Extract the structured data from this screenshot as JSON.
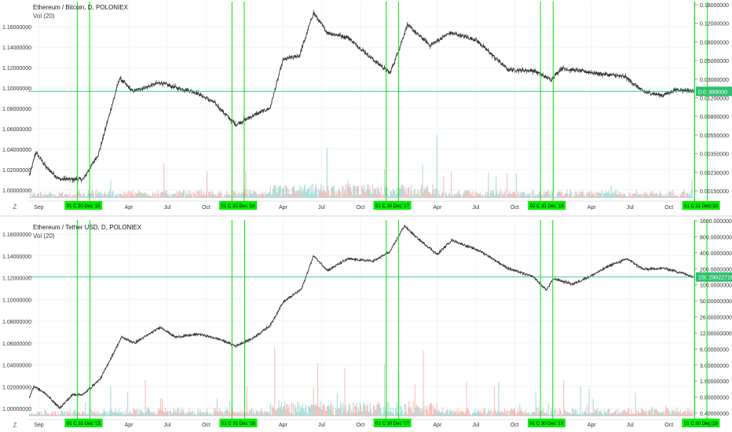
{
  "colors": {
    "up": "#26a69a",
    "down": "#ef5350",
    "bar": "#333333",
    "cycle_line": "#00e600",
    "cycle_tag_bg": "#00ee00",
    "last_price_tag_bg": "#2fbf71",
    "grid": "#f0f3fa",
    "axis_text": "#333333"
  },
  "panes": [
    {
      "title": "Ethereum / Bitcoin, D, POLONIEX",
      "volume_label": "Vol (20)",
      "left_axis_labels": [
        "1.16000000",
        "1.14000000",
        "1.12000000",
        "1.10000000",
        "1.08000000",
        "1.06000000",
        "1.04000000",
        "1.02000000",
        "1.00000000"
      ],
      "right_axis_labels": [
        "0.18000000",
        "0.12000000",
        "0.08000000",
        "0.05000000",
        "0.03000000",
        "0.01200000",
        "0.00800000",
        "0.00550000",
        "0.00350000",
        "0.00230000",
        "0.00150000"
      ],
      "last_price_label": "0.01999000",
      "x_axis_labels": [
        "Sep",
        "Apr",
        "Jul",
        "Oct",
        "Apr",
        "Jul",
        "Oct",
        "Apr",
        "Jul",
        "Oct",
        "Apr",
        "Jul",
        "Oct"
      ],
      "cycle_tags": [
        "01 C  30 Dec '15",
        "01 C  30 Dec '16",
        "01 C  30 Dec '17",
        "02 C  31 Dec '18",
        "01 C  31 Dec '19"
      ],
      "corner_left_icon": "Z",
      "corner_right_icon": "A",
      "chart_data": {
        "type": "candlestick",
        "series": [
          {
            "name": "Ethereum / Bitcoin",
            "scale": "log",
            "anchors": [
              {
                "t": "2015-08-10",
                "v": 0.0023
              },
              {
                "t": "2015-08-25",
                "v": 0.0042
              },
              {
                "t": "2015-09-20",
                "v": 0.0028
              },
              {
                "t": "2015-10-20",
                "v": 0.0021
              },
              {
                "t": "2015-12-15",
                "v": 0.0021
              },
              {
                "t": "2016-01-20",
                "v": 0.004
              },
              {
                "t": "2016-03-10",
                "v": 0.028
              },
              {
                "t": "2016-04-10",
                "v": 0.02
              },
              {
                "t": "2016-06-15",
                "v": 0.025
              },
              {
                "t": "2016-07-20",
                "v": 0.022
              },
              {
                "t": "2016-09-01",
                "v": 0.02
              },
              {
                "t": "2016-10-20",
                "v": 0.015
              },
              {
                "t": "2016-12-10",
                "v": 0.0085
              },
              {
                "t": "2017-01-25",
                "v": 0.011
              },
              {
                "t": "2017-03-01",
                "v": 0.013
              },
              {
                "t": "2017-04-01",
                "v": 0.045
              },
              {
                "t": "2017-05-10",
                "v": 0.05
              },
              {
                "t": "2017-06-12",
                "v": 0.15
              },
              {
                "t": "2017-07-15",
                "v": 0.09
              },
              {
                "t": "2017-09-01",
                "v": 0.08
              },
              {
                "t": "2017-11-01",
                "v": 0.045
              },
              {
                "t": "2017-12-10",
                "v": 0.032
              },
              {
                "t": "2018-01-01",
                "v": 0.06
              },
              {
                "t": "2018-01-20",
                "v": 0.11
              },
              {
                "t": "2018-03-15",
                "v": 0.065
              },
              {
                "t": "2018-05-01",
                "v": 0.09
              },
              {
                "t": "2018-07-01",
                "v": 0.075
              },
              {
                "t": "2018-09-15",
                "v": 0.035
              },
              {
                "t": "2018-11-15",
                "v": 0.034
              },
              {
                "t": "2018-12-25",
                "v": 0.027
              },
              {
                "t": "2019-01-20",
                "v": 0.036
              },
              {
                "t": "2019-03-01",
                "v": 0.034
              },
              {
                "t": "2019-05-01",
                "v": 0.031
              },
              {
                "t": "2019-06-20",
                "v": 0.029
              },
              {
                "t": "2019-08-01",
                "v": 0.02
              },
              {
                "t": "2019-09-15",
                "v": 0.018
              },
              {
                "t": "2019-10-20",
                "v": 0.021
              },
              {
                "t": "2019-11-28",
                "v": 0.01999
              }
            ]
          }
        ],
        "x_range": [
          "2015-08-07",
          "2019-11-30"
        ],
        "ylim": [
          0.0013,
          0.2
        ],
        "cycle_markers": [
          "2015-12-01",
          "2015-12-30",
          "2016-12-01",
          "2016-12-30",
          "2017-12-01",
          "2017-12-30",
          "2018-12-01",
          "2018-12-31",
          "2019-12-01",
          "2019-12-31"
        ],
        "last_price": 0.01999,
        "grid": true
      }
    },
    {
      "title": "Ethereum / Tether USD, D, POLONIEX",
      "volume_label": "Vol (20)",
      "left_axis_labels": [
        "1.16000000",
        "1.14000000",
        "1.12000000",
        "1.10000000",
        "1.08000000",
        "1.06000000",
        "1.04000000",
        "1.02000000",
        "1.00000000"
      ],
      "right_axis_labels": [
        "1600.00000000",
        "800.00000000",
        "400.00000000",
        "200.00000000",
        "100.00000000",
        "50.00000000",
        "26.00000000",
        "12.00000000",
        "6.00000000",
        "3.00000000",
        "1.60000000",
        "0.80000000",
        "0.40000000"
      ],
      "last_price_label": "150.29022716",
      "x_axis_labels": [
        "Sep",
        "Apr",
        "Jul",
        "Oct",
        "Apr",
        "Jul",
        "Oct",
        "Apr",
        "Jul",
        "Oct",
        "Apr",
        "Jul",
        "Oct"
      ],
      "cycle_tags": [
        "01 C  31 Dec '15",
        "01 C  31 Dec '16",
        "01 C  30 Dec '17",
        "01 C  30 Dec '18",
        "01 C  30 Dec '19"
      ],
      "corner_left_icon": "Z",
      "corner_right_icon": "A",
      "chart_data": {
        "type": "candlestick",
        "series": [
          {
            "name": "Ethereum / Tether USD",
            "scale": "log",
            "anchors": [
              {
                "t": "2015-08-10",
                "v": 0.8
              },
              {
                "t": "2015-08-20",
                "v": 1.3
              },
              {
                "t": "2015-09-20",
                "v": 0.9
              },
              {
                "t": "2015-10-20",
                "v": 0.5
              },
              {
                "t": "2015-11-20",
                "v": 0.9
              },
              {
                "t": "2015-12-15",
                "v": 0.9
              },
              {
                "t": "2016-01-25",
                "v": 1.8
              },
              {
                "t": "2016-03-15",
                "v": 11.0
              },
              {
                "t": "2016-04-15",
                "v": 8.5
              },
              {
                "t": "2016-06-15",
                "v": 17.0
              },
              {
                "t": "2016-07-20",
                "v": 11.0
              },
              {
                "t": "2016-09-15",
                "v": 12.5
              },
              {
                "t": "2016-11-01",
                "v": 10.0
              },
              {
                "t": "2016-12-10",
                "v": 7.5
              },
              {
                "t": "2017-01-20",
                "v": 10.5
              },
              {
                "t": "2017-03-01",
                "v": 18.0
              },
              {
                "t": "2017-04-01",
                "v": 50.0
              },
              {
                "t": "2017-05-15",
                "v": 90.0
              },
              {
                "t": "2017-06-12",
                "v": 380.0
              },
              {
                "t": "2017-07-15",
                "v": 200.0
              },
              {
                "t": "2017-09-01",
                "v": 330.0
              },
              {
                "t": "2017-11-01",
                "v": 300.0
              },
              {
                "t": "2017-12-10",
                "v": 450.0
              },
              {
                "t": "2018-01-13",
                "v": 1400.0
              },
              {
                "t": "2018-02-10",
                "v": 850.0
              },
              {
                "t": "2018-04-01",
                "v": 400.0
              },
              {
                "t": "2018-05-05",
                "v": 750.0
              },
              {
                "t": "2018-07-15",
                "v": 450.0
              },
              {
                "t": "2018-09-15",
                "v": 220.0
              },
              {
                "t": "2018-11-15",
                "v": 150.0
              },
              {
                "t": "2018-12-15",
                "v": 85.0
              },
              {
                "t": "2019-01-01",
                "v": 140.0
              },
              {
                "t": "2019-02-15",
                "v": 110.0
              },
              {
                "t": "2019-04-01",
                "v": 160.0
              },
              {
                "t": "2019-05-15",
                "v": 250.0
              },
              {
                "t": "2019-06-25",
                "v": 330.0
              },
              {
                "t": "2019-08-01",
                "v": 210.0
              },
              {
                "t": "2019-09-20",
                "v": 220.0
              },
              {
                "t": "2019-11-01",
                "v": 180.0
              },
              {
                "t": "2019-11-28",
                "v": 150.29
              }
            ]
          }
        ],
        "x_range": [
          "2015-08-07",
          "2019-11-30"
        ],
        "ylim": [
          0.35,
          1800
        ],
        "cycle_markers": [
          "2015-12-01",
          "2015-12-31",
          "2016-12-01",
          "2016-12-31",
          "2017-12-01",
          "2017-12-30",
          "2018-12-01",
          "2018-12-30",
          "2019-12-01",
          "2019-12-30"
        ],
        "last_price": 150.29022716,
        "grid": true
      }
    }
  ]
}
